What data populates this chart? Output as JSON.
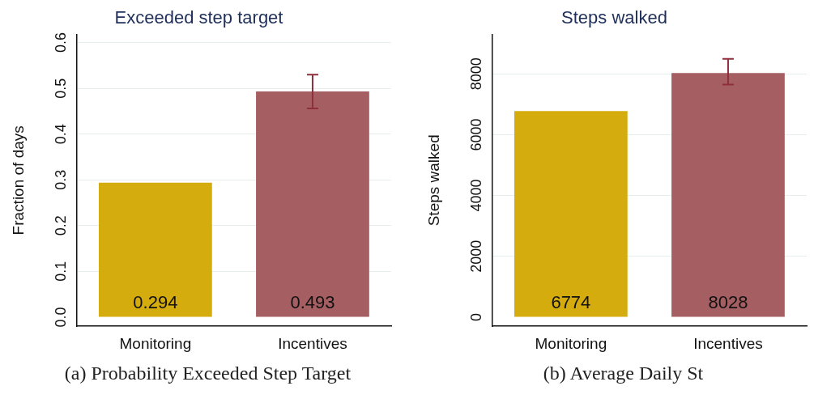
{
  "chart_data": [
    {
      "type": "bar",
      "title": "Exceeded step target",
      "ylabel": "Fraction of days",
      "categories": [
        "Monitoring",
        "Incentives"
      ],
      "colors": [
        "#d4ac0d",
        "#a55f62"
      ],
      "values": [
        0.294,
        0.493
      ],
      "errors": [
        null,
        [
          0.456,
          0.53
        ]
      ],
      "ylim": [
        -0.02,
        0.618
      ],
      "yticks": [
        {
          "value": 0,
          "label": "0.0"
        },
        0.1,
        0.2,
        0.3,
        0.4,
        0.5,
        0.6
      ],
      "grid": "y",
      "data_labels": true,
      "annotations": [
        "(a) Probability Exceeded Step Target"
      ]
    },
    {
      "type": "bar",
      "title": "Steps walked",
      "ylabel": "Steps walked",
      "categories": [
        "Monitoring",
        "Incentives"
      ],
      "colors": [
        "#d4ac0d",
        "#a55f62"
      ],
      "values": [
        6774,
        8028
      ],
      "errors": [
        null,
        [
          7650,
          8490
        ]
      ],
      "ylim": [
        -300,
        9300
      ],
      "yticks": [
        0,
        2000,
        4000,
        6000,
        8000
      ],
      "grid": "y",
      "data_labels": true,
      "annotations": [
        "(b) Average Daily St"
      ]
    }
  ]
}
